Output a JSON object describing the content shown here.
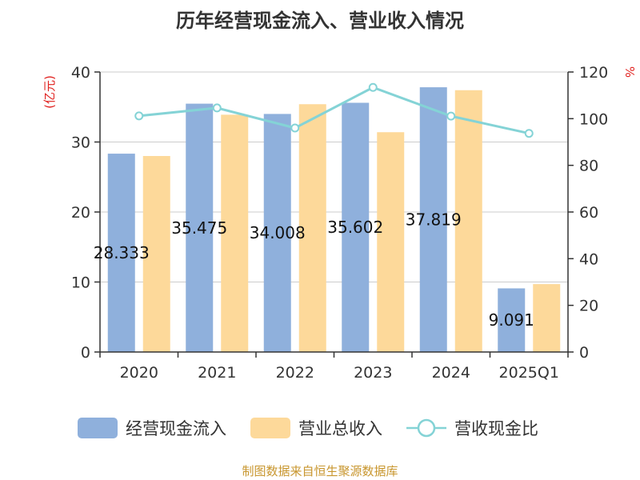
{
  "chart_data": {
    "type": "bar",
    "title": "历年经营现金流入、营业收入情况",
    "categories": [
      "2020",
      "2021",
      "2022",
      "2023",
      "2024",
      "2025Q1"
    ],
    "ylabel": "(亿元)",
    "y2label": "%",
    "ylim": [
      0,
      40
    ],
    "y2lim": [
      0,
      120
    ],
    "yticks": [
      0,
      10,
      20,
      30,
      40
    ],
    "y2ticks": [
      0,
      20,
      40,
      60,
      80,
      100,
      120
    ],
    "series": [
      {
        "name": "经营现金流入",
        "type": "bar",
        "axis": "left",
        "color": "#8fb0dc",
        "values": [
          28.333,
          35.475,
          34.008,
          35.602,
          37.819,
          9.091
        ],
        "labels": [
          "28.333",
          "35.475",
          "34.008",
          "35.602",
          "37.819",
          "9.091"
        ]
      },
      {
        "name": "营业总收入",
        "type": "bar",
        "axis": "left",
        "color": "#fdd99a",
        "values": [
          28.0,
          33.9,
          35.4,
          31.4,
          37.4,
          9.7
        ]
      },
      {
        "name": "营收现金比",
        "type": "line",
        "axis": "right",
        "color": "#84d3d6",
        "values": [
          101.2,
          104.6,
          96.0,
          113.4,
          101.1,
          93.7
        ]
      }
    ],
    "grid": true,
    "legend_position": "bottom"
  },
  "footer": "制图数据来自恒生聚源数据库"
}
